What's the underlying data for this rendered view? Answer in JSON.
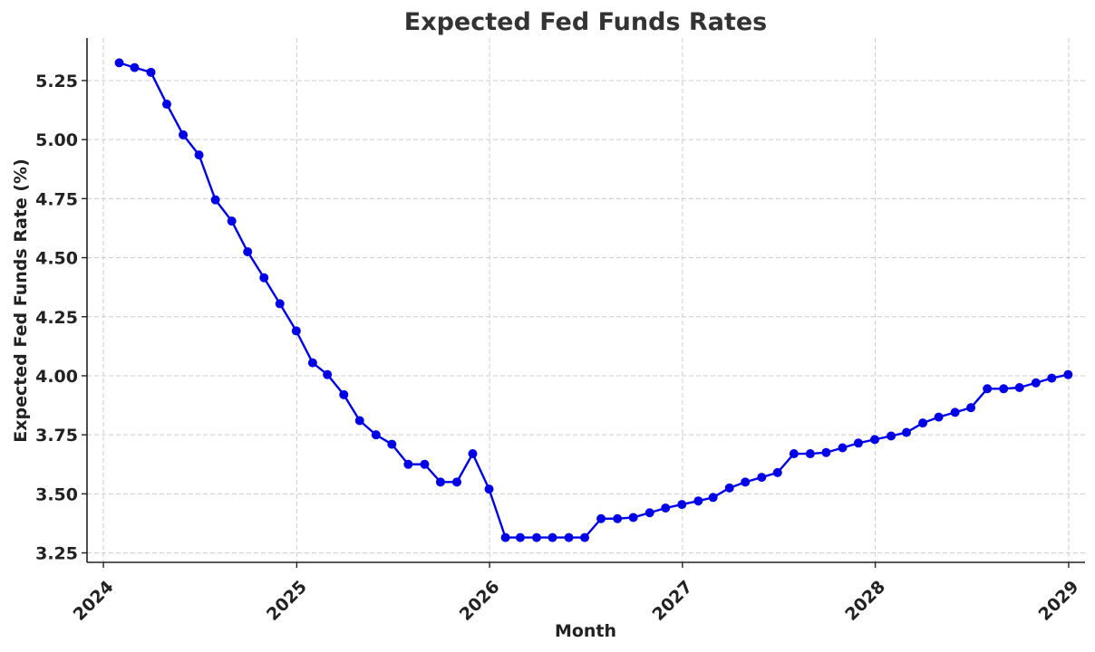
{
  "chart_data": {
    "type": "line",
    "title": "Expected Fed Funds Rates",
    "xlabel": "Month",
    "ylabel": "Expected Fed Funds Rate (%)",
    "x_is_date": true,
    "xlim": [
      "2023-12-01",
      "2029-02-01"
    ],
    "ylim": [
      3.21,
      5.43
    ],
    "x_ticks": [
      "2024-01-01",
      "2025-01-01",
      "2026-01-01",
      "2027-01-01",
      "2028-01-01",
      "2029-01-01"
    ],
    "x_tick_labels": [
      "2024",
      "2025",
      "2026",
      "2027",
      "2028",
      "2029"
    ],
    "y_ticks": [
      3.25,
      3.5,
      3.75,
      4.0,
      4.25,
      4.5,
      4.75,
      5.0,
      5.25
    ],
    "y_tick_labels": [
      "3.25",
      "3.50",
      "3.75",
      "4.00",
      "4.25",
      "4.50",
      "4.75",
      "5.00",
      "5.25"
    ],
    "grid": true,
    "line_color": "#0000e6",
    "series": [
      {
        "name": "",
        "x": [
          "2024-01-31",
          "2024-02-29",
          "2024-03-31",
          "2024-04-30",
          "2024-05-31",
          "2024-06-30",
          "2024-07-31",
          "2024-08-31",
          "2024-09-30",
          "2024-10-31",
          "2024-11-30",
          "2024-12-31",
          "2025-01-31",
          "2025-02-28",
          "2025-03-31",
          "2025-04-30",
          "2025-05-31",
          "2025-06-30",
          "2025-07-31",
          "2025-08-31",
          "2025-09-30",
          "2025-10-31",
          "2025-11-30",
          "2025-12-31",
          "2026-01-31",
          "2026-02-28",
          "2026-03-31",
          "2026-04-30",
          "2026-05-31",
          "2026-06-30",
          "2026-07-31",
          "2026-08-31",
          "2026-09-30",
          "2026-10-31",
          "2026-11-30",
          "2026-12-31",
          "2027-01-31",
          "2027-02-28",
          "2027-03-31",
          "2027-04-30",
          "2027-05-31",
          "2027-06-30",
          "2027-07-31",
          "2027-08-31",
          "2027-09-30",
          "2027-10-31",
          "2027-11-30",
          "2027-12-31",
          "2028-01-31",
          "2028-02-29",
          "2028-03-31",
          "2028-04-30",
          "2028-05-31",
          "2028-06-30",
          "2028-07-31",
          "2028-08-31",
          "2028-09-30",
          "2028-10-31",
          "2028-11-30",
          "2028-12-31"
        ],
        "values": [
          5.325,
          5.305,
          5.285,
          5.15,
          5.02,
          4.935,
          4.745,
          4.655,
          4.525,
          4.415,
          4.305,
          4.19,
          4.055,
          4.005,
          3.92,
          3.81,
          3.75,
          3.71,
          3.625,
          3.625,
          3.55,
          3.55,
          3.67,
          3.52,
          3.315,
          3.315,
          3.315,
          3.315,
          3.315,
          3.315,
          3.395,
          3.395,
          3.4,
          3.42,
          3.44,
          3.455,
          3.47,
          3.485,
          3.525,
          3.55,
          3.57,
          3.59,
          3.67,
          3.67,
          3.675,
          3.695,
          3.715,
          3.73,
          3.745,
          3.76,
          3.8,
          3.825,
          3.845,
          3.865,
          3.945,
          3.945,
          3.95,
          3.97,
          3.99,
          4.005
        ]
      }
    ]
  }
}
